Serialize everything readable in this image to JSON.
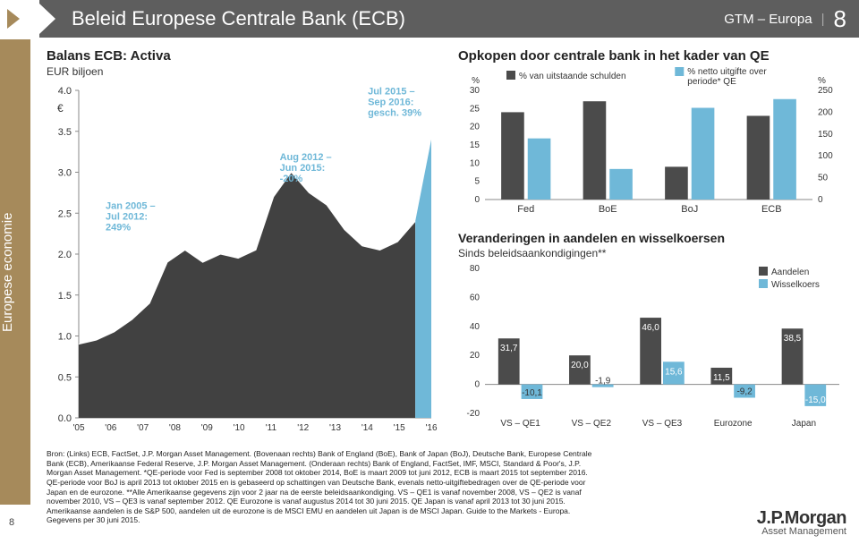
{
  "header": {
    "title": "Beleid Europese Centrale Bank (ECB)",
    "subtitle": "GTM – Europa",
    "page": "8"
  },
  "sidebar_label": "Europese economie",
  "left_chart": {
    "title": "Balans ECB: Activa",
    "subtitle": "EUR biljoen",
    "x_labels": [
      "'05",
      "'06",
      "'07",
      "'08",
      "'09",
      "'10",
      "'11",
      "'12",
      "'13",
      "'14",
      "'15",
      "'16"
    ],
    "y_ticks": [
      0.0,
      0.5,
      1.0,
      1.5,
      2.0,
      2.5,
      3.0,
      3.5,
      4.0
    ],
    "y_unit": "€",
    "annotations": {
      "a1": {
        "text": "Jan 2005 –\nJul 2012:\n249%",
        "color": "#6fb8d8"
      },
      "a2": {
        "text": "Aug 2012 –\nJun 2015:\n-20%",
        "color": "#6fb8d8"
      },
      "a3": {
        "text": "Jul 2015 –\nSep 2016:\ngesch. 39%",
        "color": "#6fb8d8"
      }
    },
    "area_color": "#414141",
    "proj_color": "#6fb8d8",
    "background": "#ffffff",
    "series_y": [
      0.9,
      0.95,
      1.05,
      1.2,
      1.4,
      1.9,
      2.05,
      1.9,
      2.0,
      1.95,
      2.05,
      2.7,
      3.0,
      2.75,
      2.6,
      2.3,
      2.1,
      2.05,
      2.15,
      2.4
    ],
    "proj_y": [
      2.4,
      3.4
    ]
  },
  "top_right": {
    "title": "Opkopen door centrale bank in het kader van QE",
    "legend1": "% van uitstaande schulden",
    "legend2": "% netto uitgifte over periode* QE",
    "categories": [
      "Fed",
      "BoE",
      "BoJ",
      "ECB"
    ],
    "left_vals": [
      24,
      27,
      9,
      23
    ],
    "right_vals": [
      140,
      70,
      210,
      230
    ],
    "left_ticks": [
      0,
      5,
      10,
      15,
      20,
      25,
      30
    ],
    "right_ticks": [
      0,
      50,
      100,
      150,
      200,
      250
    ],
    "left_unit": "%",
    "right_unit": "%",
    "left_color": "#4b4b4b",
    "right_color": "#6fb8d8",
    "background": "#ffffff"
  },
  "bottom_right": {
    "title": "Veranderingen in aandelen en wisselkoersen",
    "subtitle": "Sinds beleidsaankondigingen**",
    "legend_a": "Aandelen",
    "legend_w": "Wisselkoers",
    "categories": [
      "VS – QE1",
      "VS – QE2",
      "VS – QE3",
      "Eurozone",
      "Japan"
    ],
    "aandelen": [
      31.7,
      20.0,
      46.0,
      11.5,
      38.5
    ],
    "wissel": [
      -10.1,
      -1.9,
      15.6,
      -9.2,
      -15.0
    ],
    "y_ticks": [
      -20,
      0,
      20,
      40,
      60,
      80
    ],
    "y_unit": "%",
    "a_color": "#4b4b4b",
    "w_color": "#6fb8d8",
    "labels": {
      "a": [
        "31,7",
        "20,0",
        "46,0",
        "11,5",
        "38,5"
      ],
      "w": [
        "-10,1",
        "-1,9",
        "15,6",
        "-9,2",
        "-15,0"
      ]
    }
  },
  "footnote_lines": [
    "Bron: (Links) ECB, FactSet, J.P. Morgan Asset Management. (Bovenaan rechts) Bank of England (BoE), Bank of Japan (BoJ), Deutsche Bank, Europese Centrale",
    "Bank (ECB), Amerikaanse Federal Reserve, J.P. Morgan Asset Management. (Onderaan rechts) Bank of England, FactSet, IMF, MSCI, Standard & Poor's, J.P.",
    "Morgan Asset Management. *QE-periode voor Fed is september 2008 tot oktober 2014, BoE is maart 2009 tot juni 2012, ECB is maart 2015 tot september 2016.",
    "QE-periode voor BoJ is april 2013 tot oktober 2015 en is gebaseerd op schattingen van Deutsche Bank, evenals netto-uitgiftebedragen over de QE-periode voor",
    "Japan en de eurozone. **Alle Amerikaanse gegevens zijn voor 2 jaar na de eerste beleidsaankondiging. VS – QE1 is vanaf november 2008, VS – QE2 is vanaf",
    "november 2010, VS – QE3 is vanaf september 2012. QE Eurozone is vanaf augustus 2014 tot 30 juni 2015. QE Japan is vanaf april 2013 tot 30 juni 2015.",
    "Amerikaanse aandelen is de S&P 500, aandelen uit de eurozone is de MSCI EMU en aandelen uit Japan is de MSCI Japan. Guide to the Markets - Europa.",
    "Gegevens per 30 juni 2015."
  ],
  "logo": {
    "line1": "J.P.Morgan",
    "line2": "Asset Management"
  },
  "page_small": "8"
}
